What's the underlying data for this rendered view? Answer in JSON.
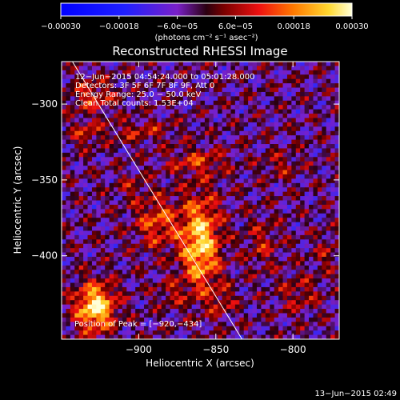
{
  "chart_data": {
    "type": "heatmap",
    "title": "Reconstructed RHESSI Image",
    "xlabel": "Heliocentric X (arcsec)",
    "ylabel": "Heliocentric Y (arcsec)",
    "xlim": [
      -950,
      -770
    ],
    "ylim": [
      -455,
      -272
    ],
    "x_ticks": [
      -900,
      -850,
      -800
    ],
    "x_tick_labels": [
      "−900",
      "−850",
      "−800"
    ],
    "y_ticks": [
      -300,
      -350,
      -400
    ],
    "y_tick_labels": [
      "−300",
      "−350",
      "−400"
    ],
    "colorbar": {
      "range": [
        -0.0003,
        0.0003
      ],
      "ticks": [
        -0.0003,
        -0.00018,
        -6e-05,
        6e-05,
        0.00018,
        0.0003
      ],
      "tick_labels": [
        "−0.00030",
        "−0.00018",
        "−6.0e−05",
        "6.0e−05",
        "0.00018",
        "0.00030"
      ],
      "unit_label": "(photons cm⁻² s⁻¹ asec⁻²)"
    },
    "info_lines": [
      "12−Jun−2015 04:54:24.000 to 05:01:28.000",
      "Detectors: 3F 5F 6F 7F 8F 9F, Att 0",
      "Energy Range: 25.0 − 50.0 keV",
      "Clean      Total counts: 1.53E+04"
    ],
    "peak_label": "Position of Peak = [−920,−434]",
    "peak": [
      -920,
      -434
    ],
    "limb_line": [
      [
        -943,
        -272
      ],
      [
        -833,
        -455
      ]
    ],
    "sources": [
      {
        "x": -928,
        "y": -434,
        "sx": 9,
        "sy": 11,
        "amp": 0.00032
      },
      {
        "x": -860,
        "y": -392,
        "sx": 9,
        "sy": 22,
        "amp": 0.00029
      },
      {
        "x": -888,
        "y": -378,
        "sx": 10,
        "sy": 12,
        "amp": 0.00016
      },
      {
        "x": -862,
        "y": -338,
        "sx": 14,
        "sy": 6,
        "amp": 0.00012
      },
      {
        "x": -900,
        "y": -318,
        "sx": 18,
        "sy": 5,
        "amp": 9e-05
      },
      {
        "x": -930,
        "y": -295,
        "sx": 10,
        "sy": 8,
        "amp": 0.00013
      },
      {
        "x": -935,
        "y": -320,
        "sx": 6,
        "sy": 6,
        "amp": 0.0001
      },
      {
        "x": -808,
        "y": -340,
        "sx": 9,
        "sy": 6,
        "amp": 8e-05
      },
      {
        "x": -820,
        "y": -392,
        "sx": 8,
        "sy": 12,
        "amp": 9e-05
      },
      {
        "x": -796,
        "y": -425,
        "sx": 9,
        "sy": 9,
        "amp": 9e-05
      },
      {
        "x": -778,
        "y": -398,
        "sx": 6,
        "sy": 9,
        "amp": 7e-05
      },
      {
        "x": -880,
        "y": -425,
        "sx": 7,
        "sy": 6,
        "amp": 8e-05
      },
      {
        "x": -846,
        "y": -430,
        "sx": 6,
        "sy": 7,
        "amp": 9e-05
      },
      {
        "x": -905,
        "y": -355,
        "sx": 7,
        "sy": 6,
        "amp": 7e-05
      }
    ]
  },
  "footer": {
    "timestamp": "13−Jun−2015 02:49"
  }
}
